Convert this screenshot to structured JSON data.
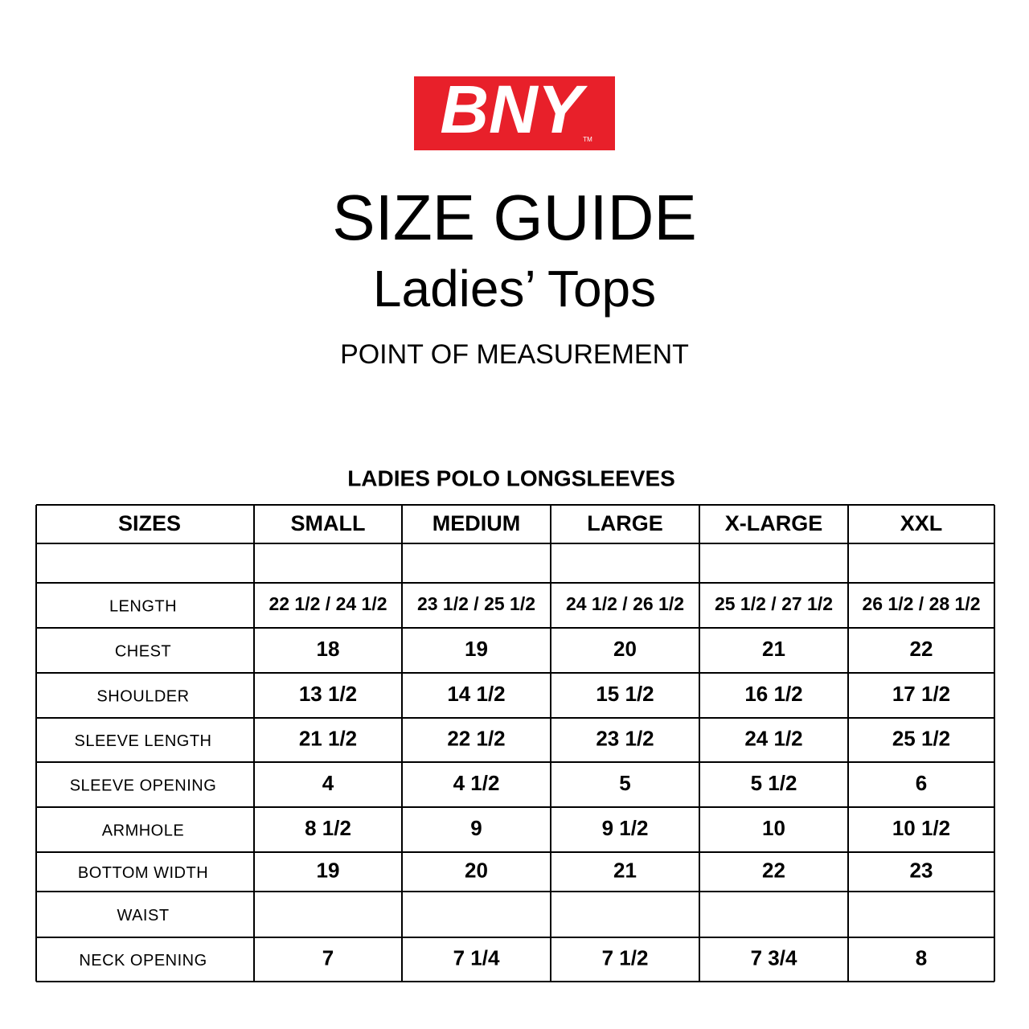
{
  "logo": {
    "text": "BNY",
    "mark": "TM"
  },
  "header": {
    "title": "SIZE GUIDE",
    "subtitle": "Ladies’ Tops",
    "section": "POINT OF MEASUREMENT"
  },
  "table": {
    "title": "LADIES POLO LONGSLEEVES",
    "columns": [
      "SIZES",
      "SMALL",
      "MEDIUM",
      "LARGE",
      "X-LARGE",
      "XXL"
    ],
    "rows": [
      [
        null,
        null,
        null,
        null,
        null,
        null
      ],
      [
        "LENGTH",
        "22 1/2 / 24 1/2",
        "23 1/2 / 25 1/2",
        "24 1/2 / 26 1/2",
        "25 1/2 / 27 1/2",
        "26 1/2 / 28 1/2"
      ],
      [
        "CHEST",
        "18",
        "19",
        "20",
        "21",
        "22"
      ],
      [
        "SHOULDER",
        "13 1/2",
        "14 1/2",
        "15 1/2",
        "16 1/2",
        "17 1/2"
      ],
      [
        "SLEEVE LENGTH",
        "21 1/2",
        "22 1/2",
        "23 1/2",
        "24 1/2",
        "25 1/2"
      ],
      [
        "SLEEVE OPENING",
        "4",
        "4 1/2",
        "5",
        "5 1/2",
        "6"
      ],
      [
        "ARMHOLE",
        "8 1/2",
        "9",
        "9 1/2",
        "10",
        "10 1/2"
      ],
      [
        "BOTTOM WIDTH",
        "19",
        "20",
        "21",
        "22",
        "23"
      ],
      [
        "WAIST",
        null,
        null,
        null,
        null,
        null
      ],
      [
        "NECK OPENING",
        "7",
        "7 1/4",
        "7 1/2",
        "7 3/4",
        "8"
      ]
    ]
  }
}
